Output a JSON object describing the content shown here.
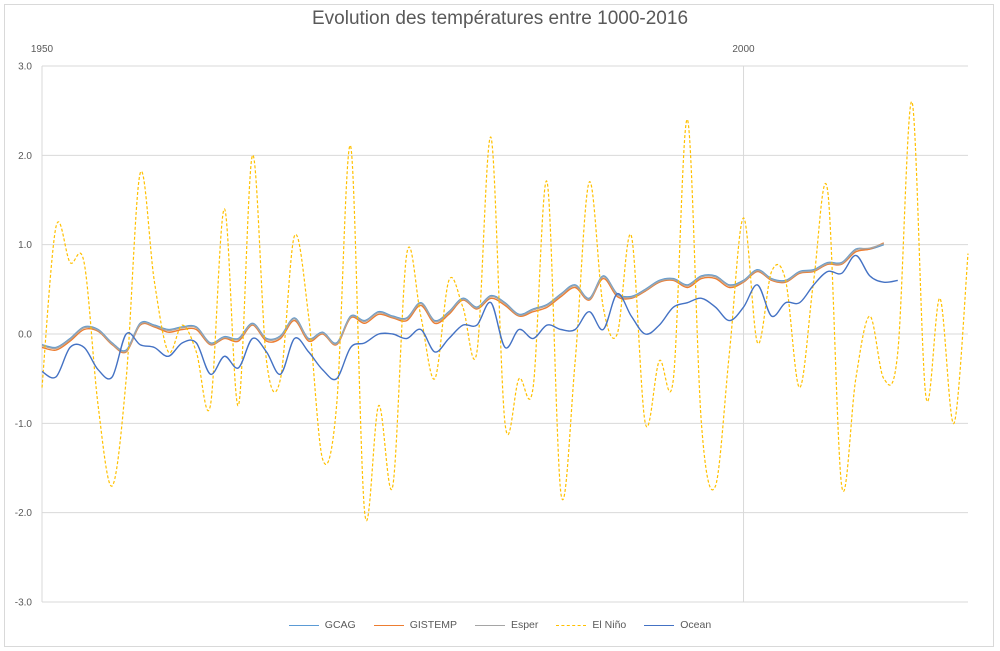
{
  "chart_data": {
    "type": "line",
    "title": "Evolution des températures entre 1000-2016",
    "xlabel": "",
    "ylabel": "",
    "xlim": [
      1950,
      2016
    ],
    "ylim": [
      -3,
      3
    ],
    "x_tick_labels": [
      {
        "year": 1950,
        "label": "1950"
      },
      {
        "year": 2000,
        "label": "2000"
      }
    ],
    "y_ticks": [
      3,
      2,
      1,
      0,
      -1,
      -2,
      -3
    ],
    "y_tick_labels": [
      "3.0",
      "2.0",
      "1.0",
      "0.0",
      "-1.0",
      "-2.0",
      "-3.0"
    ],
    "vertical_gridline_at": 2000,
    "series": [
      {
        "name": "GCAG",
        "color": "#5b9bd5",
        "dash": "solid",
        "x": [
          1950,
          1951,
          1952,
          1953,
          1954,
          1955,
          1956,
          1957,
          1958,
          1959,
          1960,
          1961,
          1962,
          1963,
          1964,
          1965,
          1966,
          1967,
          1968,
          1969,
          1970,
          1971,
          1972,
          1973,
          1974,
          1975,
          1976,
          1977,
          1978,
          1979,
          1980,
          1981,
          1982,
          1983,
          1984,
          1985,
          1986,
          1987,
          1988,
          1989,
          1990,
          1991,
          1992,
          1993,
          1994,
          1995,
          1996,
          1997,
          1998,
          1999,
          2000,
          2001,
          2002,
          2003,
          2004,
          2005,
          2006,
          2007,
          2008,
          2009,
          2010,
          2011,
          2012,
          2013,
          2014,
          2015,
          2016
        ],
        "y": [
          -0.12,
          -0.15,
          -0.05,
          0.08,
          0.05,
          -0.1,
          -0.18,
          0.12,
          0.1,
          0.05,
          0.08,
          0.08,
          -0.1,
          -0.03,
          -0.05,
          0.12,
          -0.05,
          -0.02,
          0.18,
          -0.05,
          0.02,
          -0.1,
          0.2,
          0.15,
          0.25,
          0.2,
          0.18,
          0.35,
          0.15,
          0.25,
          0.4,
          0.3,
          0.43,
          0.35,
          0.22,
          0.28,
          0.33,
          0.45,
          0.55,
          0.4,
          0.65,
          0.45,
          0.42,
          0.5,
          0.6,
          0.62,
          0.55,
          0.65,
          0.65,
          0.55,
          0.6,
          0.72,
          0.62,
          0.6,
          0.7,
          0.72,
          0.8,
          0.8,
          0.95,
          0.95,
          1.0,
          null,
          null,
          null,
          null,
          null,
          null
        ]
      },
      {
        "name": "GISTEMP",
        "color": "#ed7d31",
        "dash": "solid",
        "x": [
          1950,
          1951,
          1952,
          1953,
          1954,
          1955,
          1956,
          1957,
          1958,
          1959,
          1960,
          1961,
          1962,
          1963,
          1964,
          1965,
          1966,
          1967,
          1968,
          1969,
          1970,
          1971,
          1972,
          1973,
          1974,
          1975,
          1976,
          1977,
          1978,
          1979,
          1980,
          1981,
          1982,
          1983,
          1984,
          1985,
          1986,
          1987,
          1988,
          1989,
          1990,
          1991,
          1992,
          1993,
          1994,
          1995,
          1996,
          1997,
          1998,
          1999,
          2000,
          2001,
          2002,
          2003,
          2004,
          2005,
          2006,
          2007,
          2008,
          2009,
          2010,
          2011,
          2012,
          2013,
          2014,
          2015,
          2016
        ],
        "y": [
          -0.15,
          -0.18,
          -0.08,
          0.05,
          0.03,
          -0.12,
          -0.2,
          0.1,
          0.08,
          0.02,
          0.05,
          0.05,
          -0.12,
          -0.05,
          -0.08,
          0.1,
          -0.08,
          -0.05,
          0.15,
          -0.08,
          0.0,
          -0.12,
          0.18,
          0.12,
          0.22,
          0.18,
          0.15,
          0.32,
          0.12,
          0.22,
          0.38,
          0.28,
          0.4,
          0.32,
          0.2,
          0.25,
          0.3,
          0.42,
          0.52,
          0.38,
          0.62,
          0.42,
          0.4,
          0.48,
          0.58,
          0.6,
          0.52,
          0.62,
          0.62,
          0.52,
          0.58,
          0.7,
          0.6,
          0.58,
          0.68,
          0.7,
          0.78,
          0.78,
          0.92,
          0.95,
          1.02,
          null,
          null,
          null,
          null,
          null,
          null
        ]
      },
      {
        "name": "Esper",
        "color": "#a5a5a5",
        "dash": "solid",
        "x": [
          1950,
          1951,
          1952,
          1953,
          1954,
          1955,
          1956,
          1957,
          1958,
          1959,
          1960,
          1961,
          1962,
          1963,
          1964,
          1965,
          1966,
          1967,
          1968,
          1969,
          1970,
          1971,
          1972,
          1973,
          1974,
          1975,
          1976,
          1977,
          1978,
          1979,
          1980,
          1981,
          1982,
          1983,
          1984,
          1985,
          1986,
          1987,
          1988,
          1989,
          1990,
          1991,
          1992,
          1993,
          1994,
          1995,
          1996,
          1997,
          1998,
          1999,
          2000,
          2001,
          2002,
          2003,
          2004,
          2005,
          2006,
          2007,
          2008,
          2009,
          2010,
          2011,
          2012,
          2013,
          2014,
          2015,
          2016
        ],
        "y": [
          -0.13,
          -0.16,
          -0.06,
          0.07,
          0.04,
          -0.11,
          -0.19,
          0.11,
          0.09,
          0.04,
          0.07,
          0.07,
          -0.11,
          -0.04,
          -0.06,
          0.11,
          -0.06,
          -0.03,
          0.17,
          -0.06,
          0.01,
          -0.11,
          0.19,
          0.14,
          0.24,
          0.19,
          0.17,
          0.34,
          0.14,
          0.24,
          0.39,
          0.29,
          0.42,
          0.34,
          0.21,
          0.27,
          0.32,
          0.44,
          0.54,
          0.39,
          0.64,
          0.44,
          0.41,
          0.49,
          0.59,
          0.61,
          0.54,
          0.64,
          0.64,
          0.54,
          0.59,
          0.71,
          0.61,
          0.59,
          0.69,
          0.71,
          0.79,
          0.79,
          0.94,
          0.96,
          1.01,
          null,
          null,
          null,
          null,
          null,
          null
        ]
      },
      {
        "name": "El Niño",
        "color": "#ffc000",
        "dash": "dashed",
        "x": [
          1950,
          1951,
          1952,
          1953,
          1954,
          1955,
          1956,
          1957,
          1958,
          1959,
          1960,
          1961,
          1962,
          1963,
          1964,
          1965,
          1966,
          1967,
          1968,
          1969,
          1970,
          1971,
          1972,
          1973,
          1974,
          1975,
          1976,
          1977,
          1978,
          1979,
          1980,
          1981,
          1982,
          1983,
          1984,
          1985,
          1986,
          1987,
          1988,
          1989,
          1990,
          1991,
          1992,
          1993,
          1994,
          1995,
          1996,
          1997,
          1998,
          1999,
          2000,
          2001,
          2002,
          2003,
          2004,
          2005,
          2006,
          2007,
          2008,
          2009,
          2010,
          2011,
          2012,
          2013,
          2014,
          2015,
          2016
        ],
        "y": [
          -0.6,
          1.2,
          0.8,
          0.8,
          -0.8,
          -1.7,
          -0.5,
          1.8,
          0.6,
          -0.2,
          0.1,
          -0.2,
          -0.8,
          1.4,
          -0.8,
          2.0,
          -0.3,
          -0.5,
          1.1,
          0.2,
          -1.4,
          -0.8,
          2.1,
          -2.0,
          -0.8,
          -1.7,
          0.9,
          0.2,
          -0.5,
          0.6,
          0.3,
          -0.2,
          2.2,
          -1.0,
          -0.5,
          -0.6,
          1.7,
          -1.8,
          -0.3,
          1.7,
          0.3,
          0.0,
          1.1,
          -1.0,
          -0.3,
          -0.5,
          2.4,
          -1.0,
          -1.7,
          -0.2,
          1.3,
          -0.1,
          0.7,
          0.6,
          -0.6,
          0.6,
          1.6,
          -1.7,
          -0.5,
          0.2,
          -0.5,
          -0.2,
          2.6,
          -0.7,
          0.4,
          -1.0,
          0.9
        ]
      },
      {
        "name": "Ocean",
        "color": "#4472c4",
        "dash": "solid",
        "x": [
          1950,
          1951,
          1952,
          1953,
          1954,
          1955,
          1956,
          1957,
          1958,
          1959,
          1960,
          1961,
          1962,
          1963,
          1964,
          1965,
          1966,
          1967,
          1968,
          1969,
          1970,
          1971,
          1972,
          1973,
          1974,
          1975,
          1976,
          1977,
          1978,
          1979,
          1980,
          1981,
          1982,
          1983,
          1984,
          1985,
          1986,
          1987,
          1988,
          1989,
          1990,
          1991,
          1992,
          1993,
          1994,
          1995,
          1996,
          1997,
          1998,
          1999,
          2000,
          2001,
          2002,
          2003,
          2004,
          2005,
          2006,
          2007,
          2008,
          2009,
          2010,
          2011,
          2012,
          2013,
          2014,
          2015,
          2016
        ],
        "y": [
          -0.42,
          -0.48,
          -0.15,
          -0.15,
          -0.4,
          -0.48,
          0.0,
          -0.12,
          -0.15,
          -0.25,
          -0.1,
          -0.1,
          -0.45,
          -0.25,
          -0.38,
          -0.05,
          -0.2,
          -0.45,
          -0.05,
          -0.2,
          -0.4,
          -0.5,
          -0.15,
          -0.1,
          0.0,
          0.0,
          -0.05,
          0.05,
          -0.2,
          -0.05,
          0.1,
          0.1,
          0.35,
          -0.15,
          0.05,
          -0.05,
          0.1,
          0.05,
          0.05,
          0.25,
          0.05,
          0.45,
          0.2,
          0.0,
          0.1,
          0.3,
          0.35,
          0.4,
          0.3,
          0.15,
          0.3,
          0.55,
          0.2,
          0.35,
          0.35,
          0.55,
          0.7,
          0.68,
          0.88,
          0.65,
          0.58,
          0.6,
          null,
          null,
          null,
          null,
          null
        ]
      }
    ]
  }
}
